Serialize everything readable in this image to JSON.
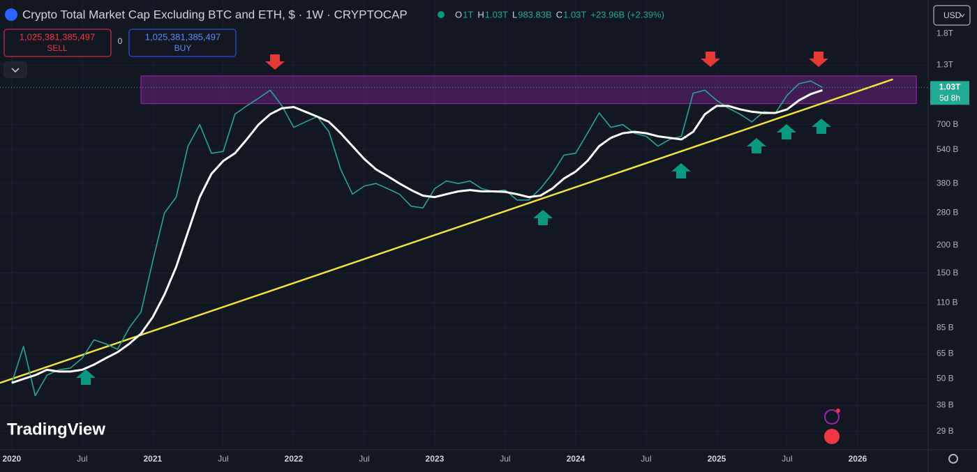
{
  "header": {
    "title": "Crypto Total Market Cap Excluding BTC and ETH, $ · 1W · CRYPTOCAP",
    "ohlc": [
      {
        "label": "O",
        "value": "1T"
      },
      {
        "label": "H",
        "value": "1.03T"
      },
      {
        "label": "L",
        "value": "983.83B"
      },
      {
        "label": "C",
        "value": "1.03T"
      }
    ],
    "change": "+23.96B (+2.39%)"
  },
  "trade": {
    "sell_price": "1,025,381,385,497",
    "sell": "SELL",
    "spread": "0",
    "buy_price": "1,025,381,385,497",
    "buy": "BUY"
  },
  "currency": "USD",
  "brand": "TradingView",
  "price_label": {
    "value": 1030,
    "label": "1.03T",
    "countdown": "5d 8h"
  },
  "chart_data": {
    "type": "line",
    "log_scale": true,
    "grid": true,
    "x": [
      "2020-01",
      "2020-02",
      "2020-03",
      "2020-04",
      "2020-05",
      "2020-06",
      "2020-07",
      "2020-08",
      "2020-09",
      "2020-10",
      "2020-11",
      "2020-12",
      "2021-01",
      "2021-02",
      "2021-03",
      "2021-04",
      "2021-05",
      "2021-06",
      "2021-07",
      "2021-08",
      "2021-09",
      "2021-10",
      "2021-11",
      "2021-12",
      "2022-01",
      "2022-02",
      "2022-03",
      "2022-04",
      "2022-05",
      "2022-06",
      "2022-07",
      "2022-08",
      "2022-09",
      "2022-10",
      "2022-11",
      "2022-12",
      "2023-01",
      "2023-02",
      "2023-03",
      "2023-04",
      "2023-05",
      "2023-06",
      "2023-07",
      "2023-08",
      "2023-09",
      "2023-10",
      "2023-11",
      "2023-12",
      "2024-01",
      "2024-02",
      "2024-03",
      "2024-04",
      "2024-05",
      "2024-06",
      "2024-07",
      "2024-08",
      "2024-09",
      "2024-10",
      "2024-11",
      "2024-12",
      "2025-01",
      "2025-02",
      "2025-03",
      "2025-04",
      "2025-05",
      "2025-06",
      "2025-07",
      "2025-08",
      "2025-09",
      "2025-10"
    ],
    "series": [
      {
        "color": "#26a69a",
        "values": [
          48,
          70,
          42,
          52,
          55,
          56,
          62,
          75,
          72,
          68,
          85,
          100,
          170,
          280,
          330,
          560,
          700,
          520,
          530,
          780,
          850,
          920,
          1000,
          850,
          680,
          720,
          760,
          650,
          440,
          340,
          370,
          380,
          360,
          340,
          300,
          295,
          360,
          390,
          380,
          390,
          360,
          350,
          355,
          320,
          320,
          360,
          420,
          510,
          520,
          640,
          790,
          680,
          700,
          640,
          620,
          560,
          600,
          620,
          970,
          1000,
          900,
          830,
          780,
          720,
          800,
          790,
          950,
          1070,
          1100,
          1030
        ]
      },
      {
        "color": "#ffffff",
        "values": [
          48,
          50,
          52,
          55,
          54,
          54,
          55,
          58,
          62,
          66,
          72,
          80,
          95,
          120,
          160,
          230,
          330,
          420,
          480,
          520,
          600,
          700,
          780,
          830,
          840,
          800,
          760,
          720,
          640,
          560,
          490,
          440,
          410,
          380,
          355,
          335,
          330,
          340,
          350,
          355,
          350,
          350,
          348,
          340,
          330,
          335,
          360,
          400,
          430,
          480,
          560,
          610,
          640,
          650,
          640,
          620,
          610,
          600,
          650,
          780,
          850,
          850,
          820,
          800,
          790,
          790,
          820,
          900,
          960,
          1000
        ]
      }
    ],
    "trend_line": {
      "color": "#f2e33a",
      "x": [
        "2019-12",
        "2026-04"
      ],
      "values": [
        48,
        1120
      ]
    },
    "zone": {
      "color": "#9c27b0",
      "x": [
        "2020-12",
        "2026-06"
      ],
      "values": [
        870,
        1160
      ]
    },
    "xlim": [
      "2019-12",
      "2026-07"
    ],
    "xticks": [
      {
        "value": "2020-01",
        "label": "2020"
      },
      {
        "value": "2020-07",
        "label": "Jul"
      },
      {
        "value": "2021-01",
        "label": "2021"
      },
      {
        "value": "2021-07",
        "label": "Jul"
      },
      {
        "value": "2022-01",
        "label": "2022"
      },
      {
        "value": "2022-07",
        "label": "Jul"
      },
      {
        "value": "2023-01",
        "label": "2023"
      },
      {
        "value": "2023-07",
        "label": "Jul"
      },
      {
        "value": "2024-01",
        "label": "2024"
      },
      {
        "value": "2024-07",
        "label": "Jul"
      },
      {
        "value": "2025-01",
        "label": "2025"
      },
      {
        "value": "2025-07",
        "label": "Jul"
      },
      {
        "value": "2026-01",
        "label": "2026"
      }
    ],
    "ylim": [
      24,
      2550
    ],
    "yticks": [
      {
        "value": 1800,
        "label": "1.8T"
      },
      {
        "value": 1300,
        "label": "1.3T"
      },
      {
        "value": 700,
        "label": "700 B"
      },
      {
        "value": 540,
        "label": "540 B"
      },
      {
        "value": 380,
        "label": "380 B"
      },
      {
        "value": 280,
        "label": "280 B"
      },
      {
        "value": 200,
        "label": "200 B"
      },
      {
        "value": 150,
        "label": "150 B"
      },
      {
        "value": 110,
        "label": "110 B"
      },
      {
        "value": 85,
        "label": "85 B"
      },
      {
        "value": 65,
        "label": "65 B"
      },
      {
        "value": 50,
        "label": "50 B"
      },
      {
        "value": 38,
        "label": "38 B"
      },
      {
        "value": 29,
        "label": "29 B"
      }
    ]
  }
}
